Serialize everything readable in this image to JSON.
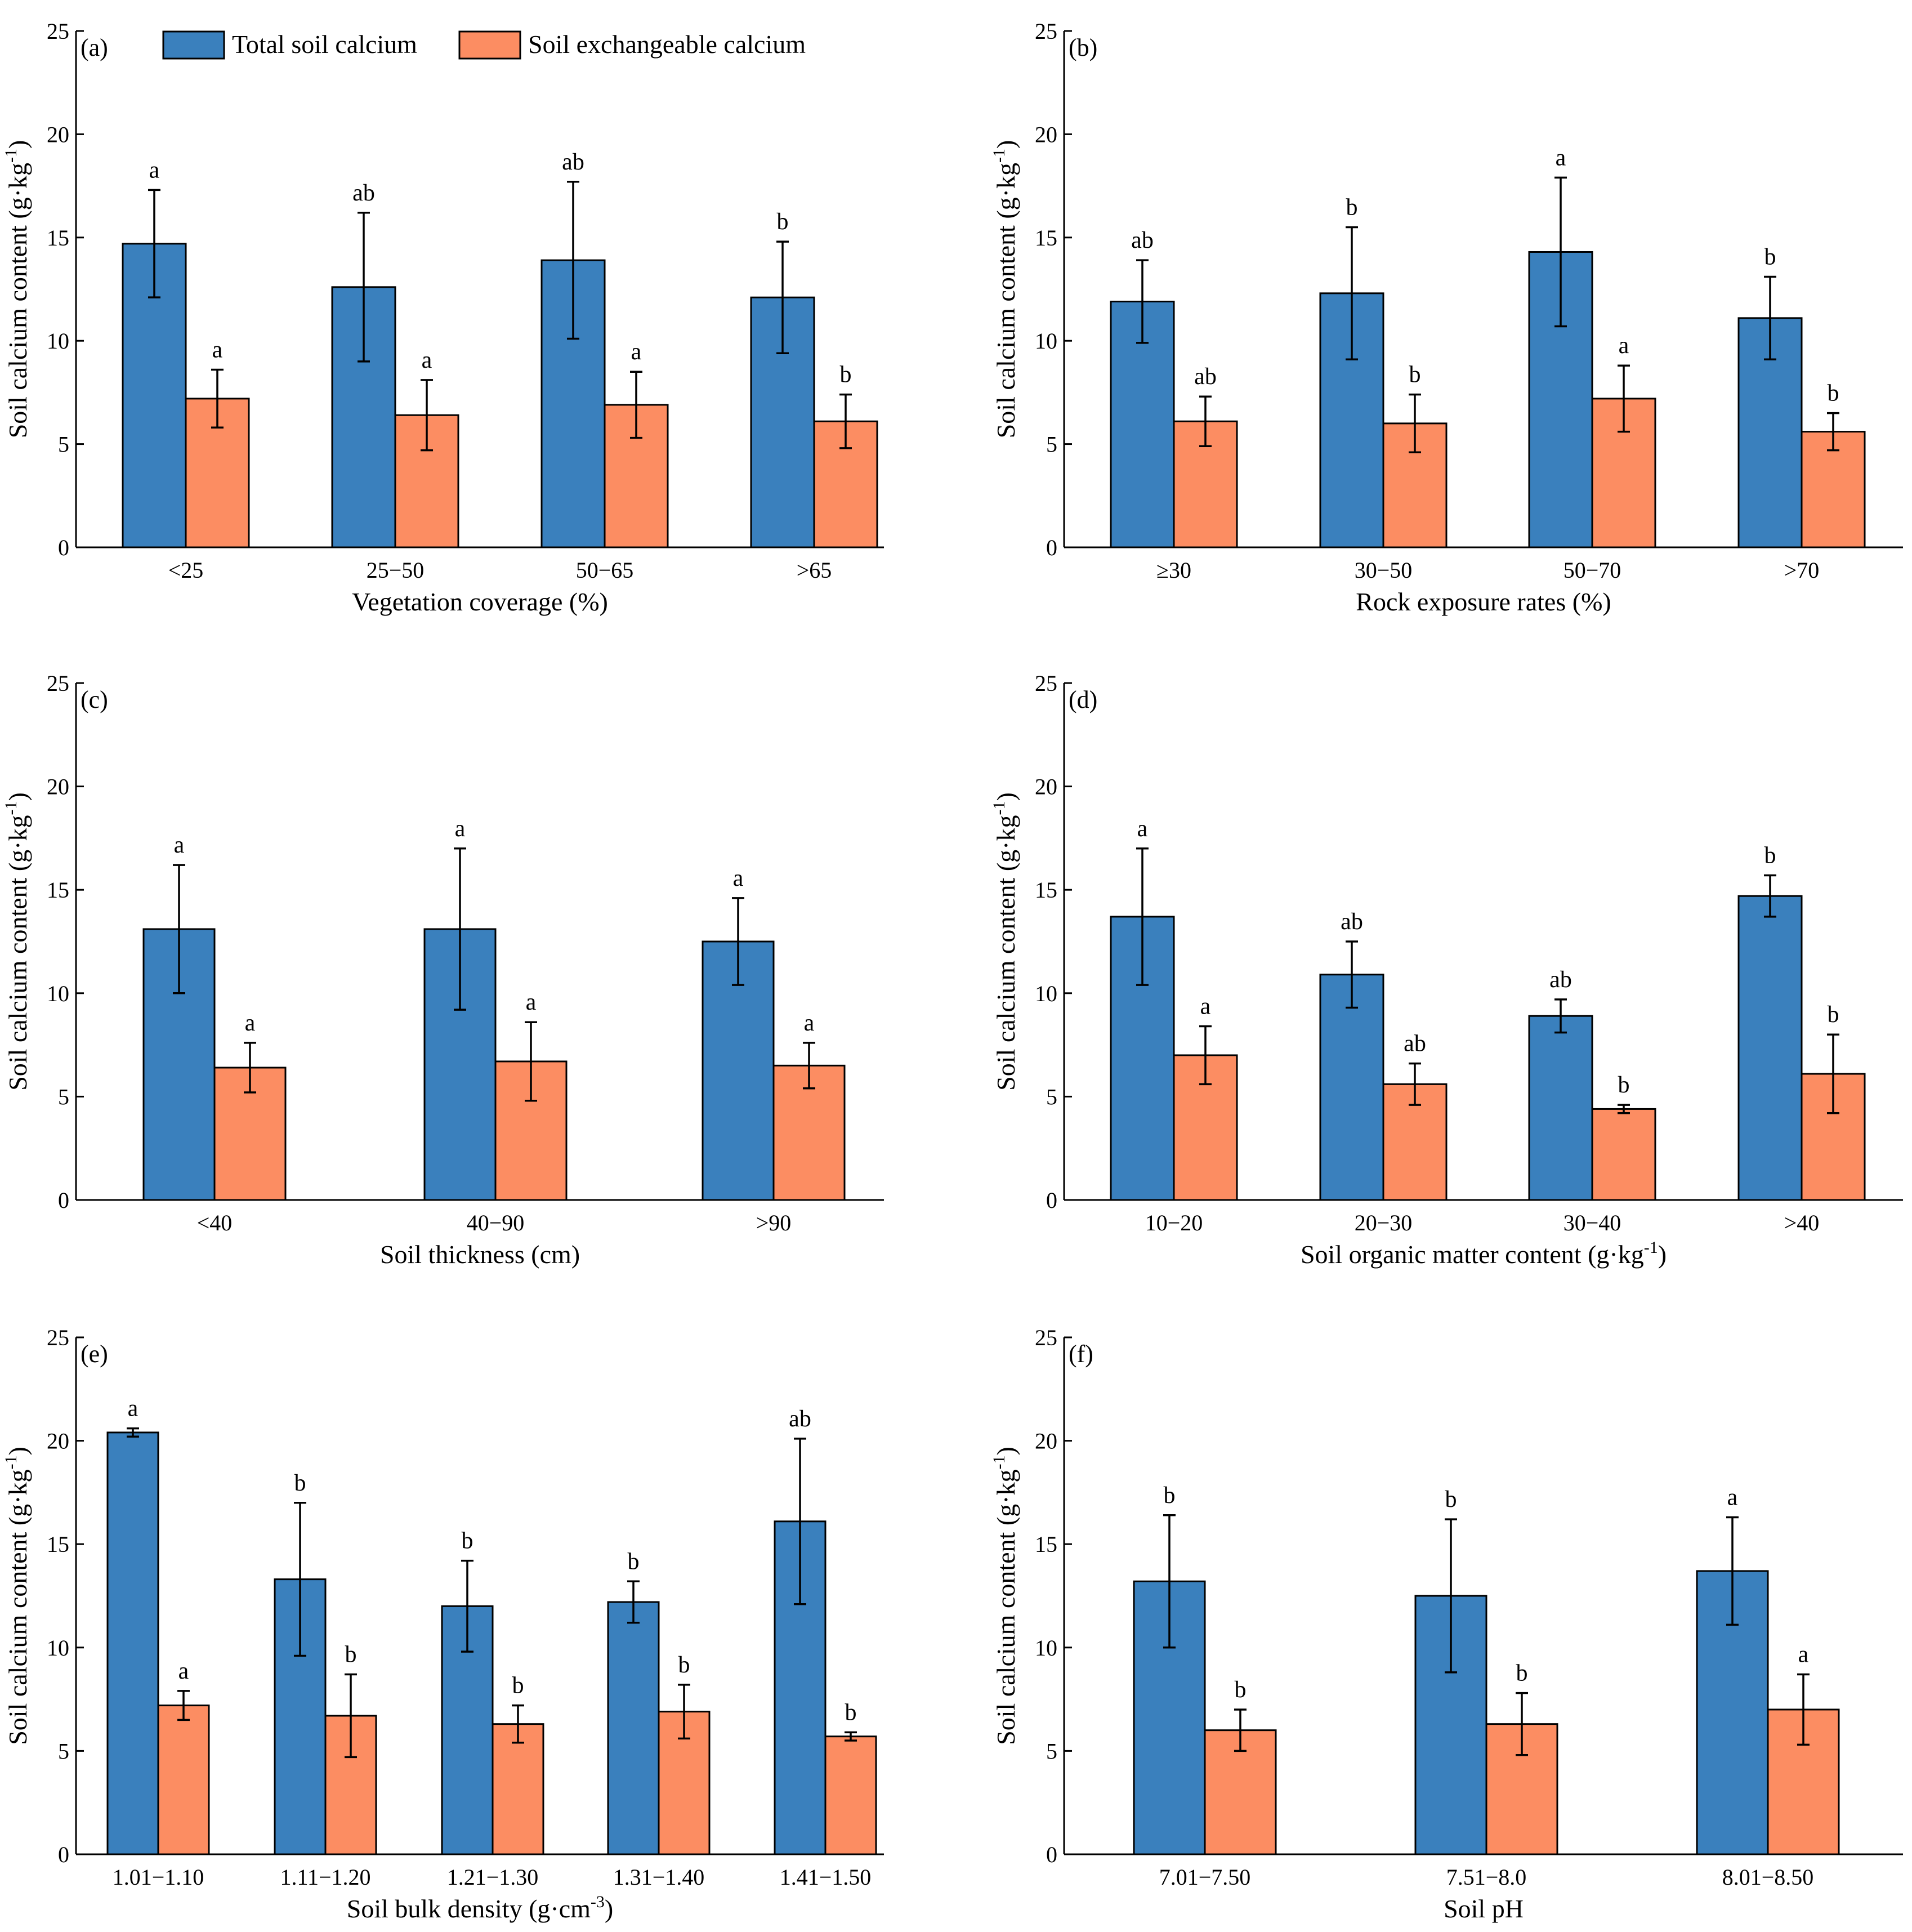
{
  "legend": {
    "series": [
      {
        "name": "Total soil calcium",
        "color": "#3a80bd"
      },
      {
        "name": "Soil exchangeable calcium",
        "color": "#fc8d62"
      }
    ]
  },
  "chart_data": [
    {
      "type": "bar",
      "panel": "(a)",
      "xlabel": "Vegetation coverage (%)",
      "ylabel": "Soil calcium content (g·kg",
      "ylabel_sup": "-1",
      "ylabel_end": ")",
      "ylim": [
        0,
        25
      ],
      "yticks": [
        "0",
        "5",
        "10",
        "15",
        "20",
        "25"
      ],
      "categories": [
        "<25",
        "25−50",
        "50−65",
        ">65"
      ],
      "series": [
        {
          "name": "Total soil calcium",
          "values": [
            14.7,
            12.6,
            13.9,
            12.1
          ],
          "errors": [
            2.6,
            3.6,
            3.8,
            2.7
          ],
          "letters": [
            "a",
            "ab",
            "ab",
            "b"
          ]
        },
        {
          "name": "Soil exchangeable calcium",
          "values": [
            7.2,
            6.4,
            6.9,
            6.1
          ],
          "errors": [
            1.4,
            1.7,
            1.6,
            1.3
          ],
          "letters": [
            "a",
            "a",
            "a",
            "b"
          ]
        }
      ]
    },
    {
      "type": "bar",
      "panel": "(b)",
      "xlabel": "Rock exposure rates (%)",
      "ylabel": "Soil calcium content (g·kg",
      "ylabel_sup": "-1",
      "ylabel_end": ")",
      "ylim": [
        0,
        25
      ],
      "yticks": [
        "0",
        "5",
        "10",
        "15",
        "20",
        "25"
      ],
      "categories": [
        "≥30",
        "30−50",
        "50−70",
        ">70"
      ],
      "series": [
        {
          "name": "Total soil calcium",
          "values": [
            11.9,
            12.3,
            14.3,
            11.1
          ],
          "errors": [
            2.0,
            3.2,
            3.6,
            2.0
          ],
          "letters": [
            "ab",
            "b",
            "a",
            "b"
          ]
        },
        {
          "name": "Soil exchangeable calcium",
          "values": [
            6.1,
            6.0,
            7.2,
            5.6
          ],
          "errors": [
            1.2,
            1.4,
            1.6,
            0.9
          ],
          "letters": [
            "ab",
            "b",
            "a",
            "b"
          ]
        }
      ]
    },
    {
      "type": "bar",
      "panel": "(c)",
      "xlabel": "Soil thickness (cm)",
      "ylabel": "Soil calcium content (g·kg",
      "ylabel_sup": "-1",
      "ylabel_end": ")",
      "ylim": [
        0,
        25
      ],
      "yticks": [
        "0",
        "5",
        "10",
        "15",
        "20",
        "25"
      ],
      "categories": [
        "<40",
        "40−90",
        ">90"
      ],
      "series": [
        {
          "name": "Total soil calcium",
          "values": [
            13.1,
            13.1,
            12.5
          ],
          "errors": [
            3.1,
            3.9,
            2.1
          ],
          "letters": [
            "a",
            "a",
            "a"
          ]
        },
        {
          "name": "Soil exchangeable calcium",
          "values": [
            6.4,
            6.7,
            6.5
          ],
          "errors": [
            1.2,
            1.9,
            1.1
          ],
          "letters": [
            "a",
            "a",
            "a"
          ]
        }
      ]
    },
    {
      "type": "bar",
      "panel": "(d)",
      "xlabel": "Soil organic matter content (g·kg",
      "xlabel_sup": "-1",
      "xlabel_end": ")",
      "ylabel": "Soil calcium content (g·kg",
      "ylabel_sup": "-1",
      "ylabel_end": ")",
      "ylim": [
        0,
        25
      ],
      "yticks": [
        "0",
        "5",
        "10",
        "15",
        "20",
        "25"
      ],
      "categories": [
        "10−20",
        "20−30",
        "30−40",
        ">40"
      ],
      "series": [
        {
          "name": "Total soil calcium",
          "values": [
            13.7,
            10.9,
            8.9,
            14.7
          ],
          "errors": [
            3.3,
            1.6,
            0.8,
            1.0
          ],
          "letters": [
            "a",
            "ab",
            "ab",
            "b"
          ]
        },
        {
          "name": "Soil exchangeable calcium",
          "values": [
            7.0,
            5.6,
            4.4,
            6.1
          ],
          "errors": [
            1.4,
            1.0,
            0.2,
            1.9
          ],
          "letters": [
            "a",
            "ab",
            "b",
            "b"
          ]
        }
      ]
    },
    {
      "type": "bar",
      "panel": "(e)",
      "xlabel": "Soil bulk density (g·cm",
      "xlabel_sup": "-3",
      "xlabel_end": ")",
      "ylabel": "Soil calcium content (g·kg",
      "ylabel_sup": "-1",
      "ylabel_end": ")",
      "ylim": [
        0,
        25
      ],
      "yticks": [
        "0",
        "5",
        "10",
        "15",
        "20",
        "25"
      ],
      "categories": [
        "1.01−1.10",
        "1.11−1.20",
        "1.21−1.30",
        "1.31−1.40",
        "1.41−1.50"
      ],
      "series": [
        {
          "name": "Total soil calcium",
          "values": [
            20.4,
            13.3,
            12.0,
            12.2,
            16.1
          ],
          "errors": [
            0.2,
            3.7,
            2.2,
            1.0,
            4.0
          ],
          "letters": [
            "a",
            "b",
            "b",
            "b",
            "ab"
          ]
        },
        {
          "name": "Soil exchangeable calcium",
          "values": [
            7.2,
            6.7,
            6.3,
            6.9,
            5.7
          ],
          "errors": [
            0.7,
            2.0,
            0.9,
            1.3,
            0.2
          ],
          "letters": [
            "a",
            "b",
            "b",
            "b",
            "b"
          ]
        }
      ]
    },
    {
      "type": "bar",
      "panel": "(f)",
      "xlabel": "Soil pH",
      "ylabel": "Soil calcium content (g·kg",
      "ylabel_sup": "-1",
      "ylabel_end": ")",
      "ylim": [
        0,
        25
      ],
      "yticks": [
        "0",
        "5",
        "10",
        "15",
        "20",
        "25"
      ],
      "categories": [
        "7.01−7.50",
        "7.51−8.0",
        "8.01−8.50"
      ],
      "series": [
        {
          "name": "Total soil calcium",
          "values": [
            13.2,
            12.5,
            13.7
          ],
          "errors": [
            3.2,
            3.7,
            2.6
          ],
          "letters": [
            "b",
            "b",
            "a"
          ]
        },
        {
          "name": "Soil exchangeable calcium",
          "values": [
            6.0,
            6.3,
            7.0
          ],
          "errors": [
            1.0,
            1.5,
            1.7
          ],
          "letters": [
            "b",
            "b",
            "a"
          ]
        }
      ]
    }
  ]
}
